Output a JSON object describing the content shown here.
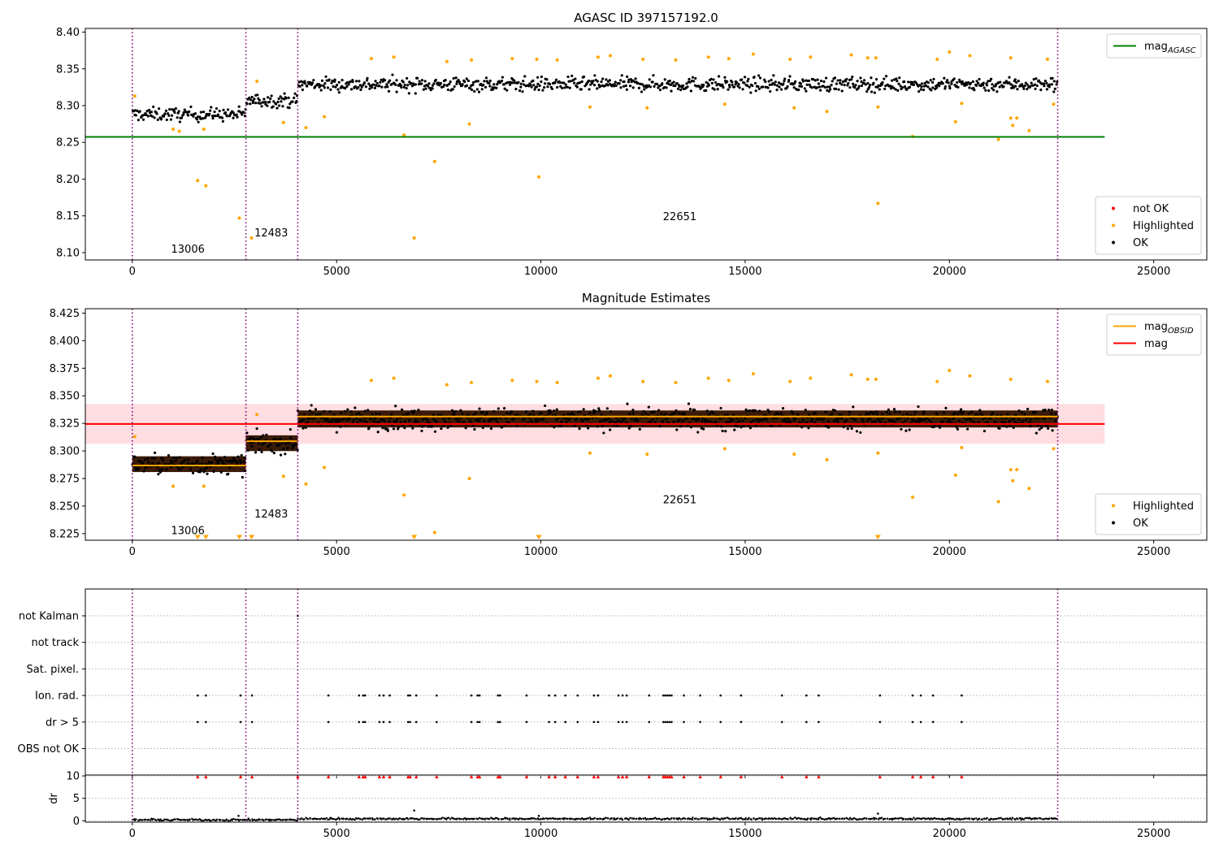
{
  "chart_data": [
    {
      "type": "scatter",
      "title": "AGASC ID 397157192.0",
      "xlabel": "",
      "ylabel": "",
      "xlim": [
        -1150,
        26300
      ],
      "ylim": [
        8.09,
        8.405
      ],
      "xticks": [
        0,
        5000,
        10000,
        15000,
        20000,
        25000
      ],
      "xtick_labels": [
        "0",
        "5000",
        "10000",
        "15000",
        "20000",
        "25000"
      ],
      "yticks": [
        8.1,
        8.15,
        8.2,
        8.25,
        8.3,
        8.35,
        8.4
      ],
      "ytick_labels": [
        "8.10",
        "8.15",
        "8.20",
        "8.25",
        "8.30",
        "8.35",
        "8.40"
      ],
      "obsid_boundaries": [
        0,
        2780,
        4050,
        22650
      ],
      "obsid_labels": [
        {
          "text": "13006",
          "x": 1360,
          "y": 8.105
        },
        {
          "text": "12483",
          "x": 3400,
          "y": 8.127
        },
        {
          "text": "22651",
          "x": 13400,
          "y": 8.149
        }
      ],
      "hlines": [
        {
          "name": "mag_AGASC",
          "y": 8.2575,
          "color": "#008000",
          "x_end": 23800
        }
      ],
      "bands": [],
      "segments": [
        {
          "x0": 0,
          "x1": 2780,
          "center": 8.288,
          "spread": 0.0065
        },
        {
          "x0": 2780,
          "x1": 4050,
          "center": 8.307,
          "spread": 0.0065
        },
        {
          "x0": 4050,
          "x1": 22650,
          "center": 8.329,
          "spread": 0.007
        }
      ],
      "highlighted_points": [
        [
          60,
          8.313
        ],
        [
          1000,
          8.268
        ],
        [
          1150,
          8.265
        ],
        [
          1600,
          8.198
        ],
        [
          1750,
          8.268
        ],
        [
          1800,
          8.191
        ],
        [
          2620,
          8.147
        ],
        [
          2920,
          8.12
        ],
        [
          3050,
          8.333
        ],
        [
          3700,
          8.277
        ],
        [
          4250,
          8.27
        ],
        [
          4700,
          8.285
        ],
        [
          6650,
          8.26
        ],
        [
          6900,
          8.12
        ],
        [
          7400,
          8.224
        ],
        [
          8250,
          8.275
        ],
        [
          9950,
          8.203
        ],
        [
          11200,
          8.298
        ],
        [
          12600,
          8.297
        ],
        [
          14500,
          8.302
        ],
        [
          16200,
          8.297
        ],
        [
          17000,
          8.292
        ],
        [
          18250,
          8.167
        ],
        [
          18250,
          8.298
        ],
        [
          19100,
          8.258
        ],
        [
          20150,
          8.278
        ],
        [
          20300,
          8.303
        ],
        [
          21200,
          8.254
        ],
        [
          21500,
          8.283
        ],
        [
          21550,
          8.273
        ],
        [
          21650,
          8.283
        ],
        [
          21950,
          8.266
        ],
        [
          22550,
          8.302
        ],
        [
          5850,
          8.364
        ],
        [
          6400,
          8.366
        ],
        [
          7700,
          8.36
        ],
        [
          8300,
          8.362
        ],
        [
          9300,
          8.364
        ],
        [
          9900,
          8.363
        ],
        [
          10400,
          8.362
        ],
        [
          11400,
          8.366
        ],
        [
          11700,
          8.368
        ],
        [
          12500,
          8.363
        ],
        [
          13300,
          8.362
        ],
        [
          14100,
          8.366
        ],
        [
          14600,
          8.364
        ],
        [
          15200,
          8.37
        ],
        [
          16100,
          8.363
        ],
        [
          16600,
          8.366
        ],
        [
          17600,
          8.369
        ],
        [
          18000,
          8.365
        ],
        [
          18200,
          8.365
        ],
        [
          19700,
          8.363
        ],
        [
          20000,
          8.373
        ],
        [
          20500,
          8.368
        ],
        [
          21500,
          8.365
        ],
        [
          22400,
          8.363
        ]
      ],
      "legends": [
        {
          "position": "upper-right",
          "entries": [
            {
              "label": "mag",
              "subscript": "AGASC",
              "marker": "line",
              "color": "#008000"
            }
          ]
        },
        {
          "position": "lower-right",
          "entries": [
            {
              "label": "not OK",
              "marker": "dot",
              "color": "#ff0000"
            },
            {
              "label": "Highlighted",
              "marker": "dot",
              "color": "#ffa500"
            },
            {
              "label": "OK",
              "marker": "dot",
              "color": "#000000"
            }
          ]
        }
      ]
    },
    {
      "type": "scatter",
      "title": "Magnitude Estimates",
      "xlabel": "",
      "ylabel": "",
      "xlim": [
        -1150,
        26300
      ],
      "ylim": [
        8.219,
        8.429
      ],
      "xticks": [
        0,
        5000,
        10000,
        15000,
        20000,
        25000
      ],
      "xtick_labels": [
        "0",
        "5000",
        "10000",
        "15000",
        "20000",
        "25000"
      ],
      "yticks": [
        8.225,
        8.25,
        8.275,
        8.3,
        8.325,
        8.35,
        8.375,
        8.4,
        8.425
      ],
      "ytick_labels": [
        "8.225",
        "8.250",
        "8.275",
        "8.300",
        "8.325",
        "8.350",
        "8.375",
        "8.400",
        "8.425"
      ],
      "obsid_boundaries": [
        0,
        2780,
        4050,
        22650
      ],
      "obsid_labels": [
        {
          "text": "13006",
          "x": 1360,
          "y": 8.228
        },
        {
          "text": "12483",
          "x": 3400,
          "y": 8.243
        },
        {
          "text": "22651",
          "x": 13400,
          "y": 8.256
        }
      ],
      "hlines": [
        {
          "name": "mag",
          "y": 8.3245,
          "color": "#ff0000",
          "x_end": 23800
        }
      ],
      "bands": [
        {
          "y0": 8.3065,
          "y1": 8.3425,
          "x_end": 23800,
          "color": "#ffdde1"
        }
      ],
      "obsid_means": [
        {
          "x0": 0,
          "x1": 2780,
          "y": 8.2868
        },
        {
          "x0": 2780,
          "x1": 4050,
          "y": 8.3088
        },
        {
          "x0": 4050,
          "x1": 22650,
          "y": 8.3312
        }
      ],
      "segments": [
        {
          "x0": 0,
          "x1": 2780,
          "center": 8.288,
          "spread": 0.0065
        },
        {
          "x0": 2780,
          "x1": 4050,
          "center": 8.307,
          "spread": 0.0065
        },
        {
          "x0": 4050,
          "x1": 22650,
          "center": 8.329,
          "spread": 0.007
        }
      ],
      "highlighted_points": [
        [
          60,
          8.313
        ],
        [
          1000,
          8.268
        ],
        [
          1750,
          8.268
        ],
        [
          3050,
          8.333
        ],
        [
          3700,
          8.277
        ],
        [
          4250,
          8.27
        ],
        [
          4700,
          8.285
        ],
        [
          6650,
          8.26
        ],
        [
          7400,
          8.226
        ],
        [
          8250,
          8.275
        ],
        [
          11200,
          8.298
        ],
        [
          12600,
          8.297
        ],
        [
          14500,
          8.302
        ],
        [
          16200,
          8.297
        ],
        [
          17000,
          8.292
        ],
        [
          18250,
          8.298
        ],
        [
          19100,
          8.258
        ],
        [
          20150,
          8.278
        ],
        [
          20300,
          8.303
        ],
        [
          21200,
          8.254
        ],
        [
          21500,
          8.283
        ],
        [
          21550,
          8.273
        ],
        [
          21650,
          8.283
        ],
        [
          21950,
          8.266
        ],
        [
          22550,
          8.302
        ],
        [
          5850,
          8.364
        ],
        [
          6400,
          8.366
        ],
        [
          7700,
          8.36
        ],
        [
          8300,
          8.362
        ],
        [
          9300,
          8.364
        ],
        [
          9900,
          8.363
        ],
        [
          10400,
          8.362
        ],
        [
          11400,
          8.366
        ],
        [
          11700,
          8.368
        ],
        [
          12500,
          8.363
        ],
        [
          13300,
          8.362
        ],
        [
          14100,
          8.366
        ],
        [
          14600,
          8.364
        ],
        [
          15200,
          8.37
        ],
        [
          16100,
          8.363
        ],
        [
          16600,
          8.366
        ],
        [
          17600,
          8.369
        ],
        [
          18000,
          8.365
        ],
        [
          18200,
          8.365
        ],
        [
          19700,
          8.363
        ],
        [
          20000,
          8.373
        ],
        [
          20500,
          8.368
        ],
        [
          21500,
          8.365
        ],
        [
          22400,
          8.363
        ]
      ],
      "offscale_low_x": [
        1600,
        1800,
        2620,
        2920,
        6900,
        9950,
        18250
      ],
      "legends": [
        {
          "position": "upper-right",
          "entries": [
            {
              "label": "mag",
              "subscript": "OBSID",
              "marker": "line",
              "color": "#ffa500"
            },
            {
              "label": "mag",
              "marker": "line",
              "color": "#ff0000"
            }
          ]
        },
        {
          "position": "lower-right",
          "entries": [
            {
              "label": "Highlighted",
              "marker": "dot",
              "color": "#ffa500"
            },
            {
              "label": "OK",
              "marker": "dot",
              "color": "#000000"
            }
          ]
        }
      ]
    },
    {
      "type": "scatter",
      "title": "",
      "xlabel": "",
      "ylabel": "",
      "xlim": [
        -1150,
        26300
      ],
      "xticks": [
        0,
        5000,
        10000,
        15000,
        20000,
        25000
      ],
      "xtick_labels": [
        "0",
        "5000",
        "10000",
        "15000",
        "20000",
        "25000"
      ],
      "obsid_boundaries": [
        0,
        2780,
        4050,
        22650
      ],
      "flag_rows": [
        "not Kalman",
        "not track",
        "Sat. pixel.",
        "Ion. rad.",
        "dr > 5",
        "OBS not OK"
      ],
      "flag_points": {
        "not Kalman": [
          4050
        ],
        "not track": [],
        "Sat. pixel.": [],
        "Ion. rad.": [
          1600,
          1800,
          2650,
          2930,
          4800,
          5550,
          5650,
          5700,
          6050,
          6150,
          6300,
          6750,
          6800,
          6950,
          7450,
          8300,
          8450,
          8500,
          8950,
          9000,
          9650,
          10200,
          10350,
          10600,
          10900,
          11300,
          11400,
          11900,
          12000,
          12100,
          12650,
          13000,
          13050,
          13100,
          13150,
          13200,
          13500,
          13900,
          14400,
          14900,
          15900,
          16500,
          16800,
          18300,
          19100,
          19300,
          19600,
          20300
        ],
        "dr > 5": [
          1600,
          1800,
          2650,
          2930,
          4800,
          5550,
          5650,
          5700,
          6050,
          6150,
          6300,
          6750,
          6800,
          6950,
          7450,
          8300,
          8450,
          8500,
          8950,
          9000,
          9650,
          10200,
          10350,
          10600,
          10900,
          11300,
          11400,
          11900,
          12000,
          12100,
          12650,
          13000,
          13050,
          13100,
          13150,
          13200,
          13500,
          13900,
          14400,
          14900,
          15900,
          16500,
          16800,
          18300,
          19100,
          19300,
          19600,
          20300
        ],
        "OBS not OK": []
      }
    },
    {
      "type": "scatter",
      "title": "",
      "xlabel": "",
      "ylabel": "dr",
      "xlim": [
        -1150,
        26300
      ],
      "ylim": [
        -0.3,
        10.2
      ],
      "xticks": [
        0,
        5000,
        10000,
        15000,
        20000,
        25000
      ],
      "xtick_labels": [
        "0",
        "5000",
        "10000",
        "15000",
        "20000",
        "25000"
      ],
      "yticks": [
        0,
        5,
        10
      ],
      "ytick_labels": [
        "0",
        "5",
        "10"
      ],
      "obsid_boundaries": [
        0,
        2780,
        4050,
        22650
      ],
      "dr_baseline": [
        {
          "x0": 0,
          "x1": 4050,
          "median": 0.2
        },
        {
          "x0": 4050,
          "x1": 22650,
          "median": 0.45
        }
      ],
      "dr_outliers": [
        [
          2600,
          1.1
        ],
        [
          6900,
          2.3
        ],
        [
          9950,
          1.1
        ],
        [
          18250,
          1.6
        ]
      ],
      "capped_x": [
        1600,
        1800,
        2650,
        2930,
        4050,
        4800,
        5550,
        5650,
        5700,
        6050,
        6150,
        6300,
        6750,
        6800,
        6950,
        7450,
        8300,
        8450,
        8500,
        8950,
        9000,
        9650,
        10200,
        10350,
        10600,
        10900,
        11300,
        11400,
        11900,
        12000,
        12100,
        12650,
        13000,
        13050,
        13100,
        13150,
        13200,
        13500,
        13900,
        14400,
        14900,
        15900,
        16500,
        16800,
        18300,
        19100,
        19300,
        19600,
        20300
      ]
    }
  ]
}
